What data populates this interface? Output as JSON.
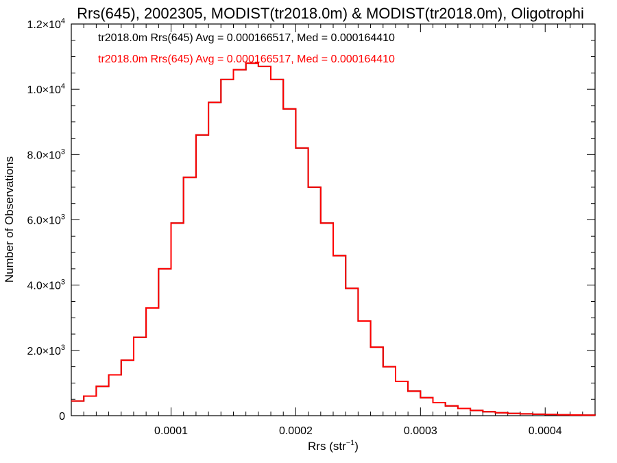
{
  "chart_data": {
    "type": "line",
    "title": "Rrs(645), 2002305, MODIST(tr2018.0m) & MODIST(tr2018.0m), Oligotrophi",
    "xlabel": "Rrs (str",
    "xlabel_sup": "−1",
    "xlabel_end": ")",
    "ylabel": "Number of Observations",
    "xlim": [
      2e-05,
      0.00044
    ],
    "ylim": [
      0,
      12000
    ],
    "x_ticks": [
      {
        "value": 0.0001,
        "label": "0.0001"
      },
      {
        "value": 0.0002,
        "label": "0.0002"
      },
      {
        "value": 0.0003,
        "label": "0.0003"
      },
      {
        "value": 0.0004,
        "label": "0.0004"
      }
    ],
    "y_ticks": [
      {
        "value": 0,
        "mant": "0",
        "exp": ""
      },
      {
        "value": 2000,
        "mant": "2.0×10",
        "exp": "3"
      },
      {
        "value": 4000,
        "mant": "4.0×10",
        "exp": "3"
      },
      {
        "value": 6000,
        "mant": "6.0×10",
        "exp": "3"
      },
      {
        "value": 8000,
        "mant": "8.0×10",
        "exp": "3"
      },
      {
        "value": 10000,
        "mant": "1.0×10",
        "exp": "4"
      },
      {
        "value": 12000,
        "mant": "1.2×10",
        "exp": "4"
      }
    ],
    "grid": false,
    "series": [
      {
        "name": "tr2018.0m Rrs(645) Avg = 0.000166517, Med = 0.000164410",
        "color": "#000000",
        "x": [
          2e-05,
          3e-05,
          4e-05,
          5e-05,
          6e-05,
          7e-05,
          8e-05,
          9e-05,
          0.0001,
          0.00011,
          0.00012,
          0.00013,
          0.00014,
          0.00015,
          0.00016,
          0.00017,
          0.00018,
          0.00019,
          0.0002,
          0.00021,
          0.00022,
          0.00023,
          0.00024,
          0.00025,
          0.00026,
          0.00027,
          0.00028,
          0.00029,
          0.0003,
          0.00031,
          0.00032,
          0.00033,
          0.00034,
          0.00035,
          0.00036,
          0.00037,
          0.00038,
          0.00039,
          0.0004,
          0.00041,
          0.00042,
          0.00043,
          0.00044
        ],
        "values": [
          450,
          600,
          900,
          1250,
          1700,
          2400,
          3300,
          4500,
          5900,
          7300,
          8600,
          9600,
          10300,
          10600,
          10800,
          10700,
          10300,
          9400,
          8200,
          7000,
          5900,
          4900,
          3900,
          2900,
          2100,
          1500,
          1050,
          750,
          550,
          400,
          300,
          220,
          160,
          120,
          90,
          70,
          55,
          45,
          35,
          28,
          20,
          15,
          10
        ]
      },
      {
        "name": "tr2018.0m Rrs(645) Avg = 0.000166517, Med = 0.000164410",
        "color": "#ff0000",
        "x": [
          2e-05,
          3e-05,
          4e-05,
          5e-05,
          6e-05,
          7e-05,
          8e-05,
          9e-05,
          0.0001,
          0.00011,
          0.00012,
          0.00013,
          0.00014,
          0.00015,
          0.00016,
          0.00017,
          0.00018,
          0.00019,
          0.0002,
          0.00021,
          0.00022,
          0.00023,
          0.00024,
          0.00025,
          0.00026,
          0.00027,
          0.00028,
          0.00029,
          0.0003,
          0.00031,
          0.00032,
          0.00033,
          0.00034,
          0.00035,
          0.00036,
          0.00037,
          0.00038,
          0.00039,
          0.0004,
          0.00041,
          0.00042,
          0.00043,
          0.00044
        ],
        "values": [
          450,
          600,
          900,
          1250,
          1700,
          2400,
          3300,
          4500,
          5900,
          7300,
          8600,
          9600,
          10300,
          10600,
          10800,
          10700,
          10300,
          9400,
          8200,
          7000,
          5900,
          4900,
          3900,
          2900,
          2100,
          1500,
          1050,
          750,
          550,
          400,
          300,
          220,
          160,
          120,
          90,
          70,
          55,
          45,
          35,
          28,
          20,
          15,
          10
        ]
      }
    ]
  }
}
